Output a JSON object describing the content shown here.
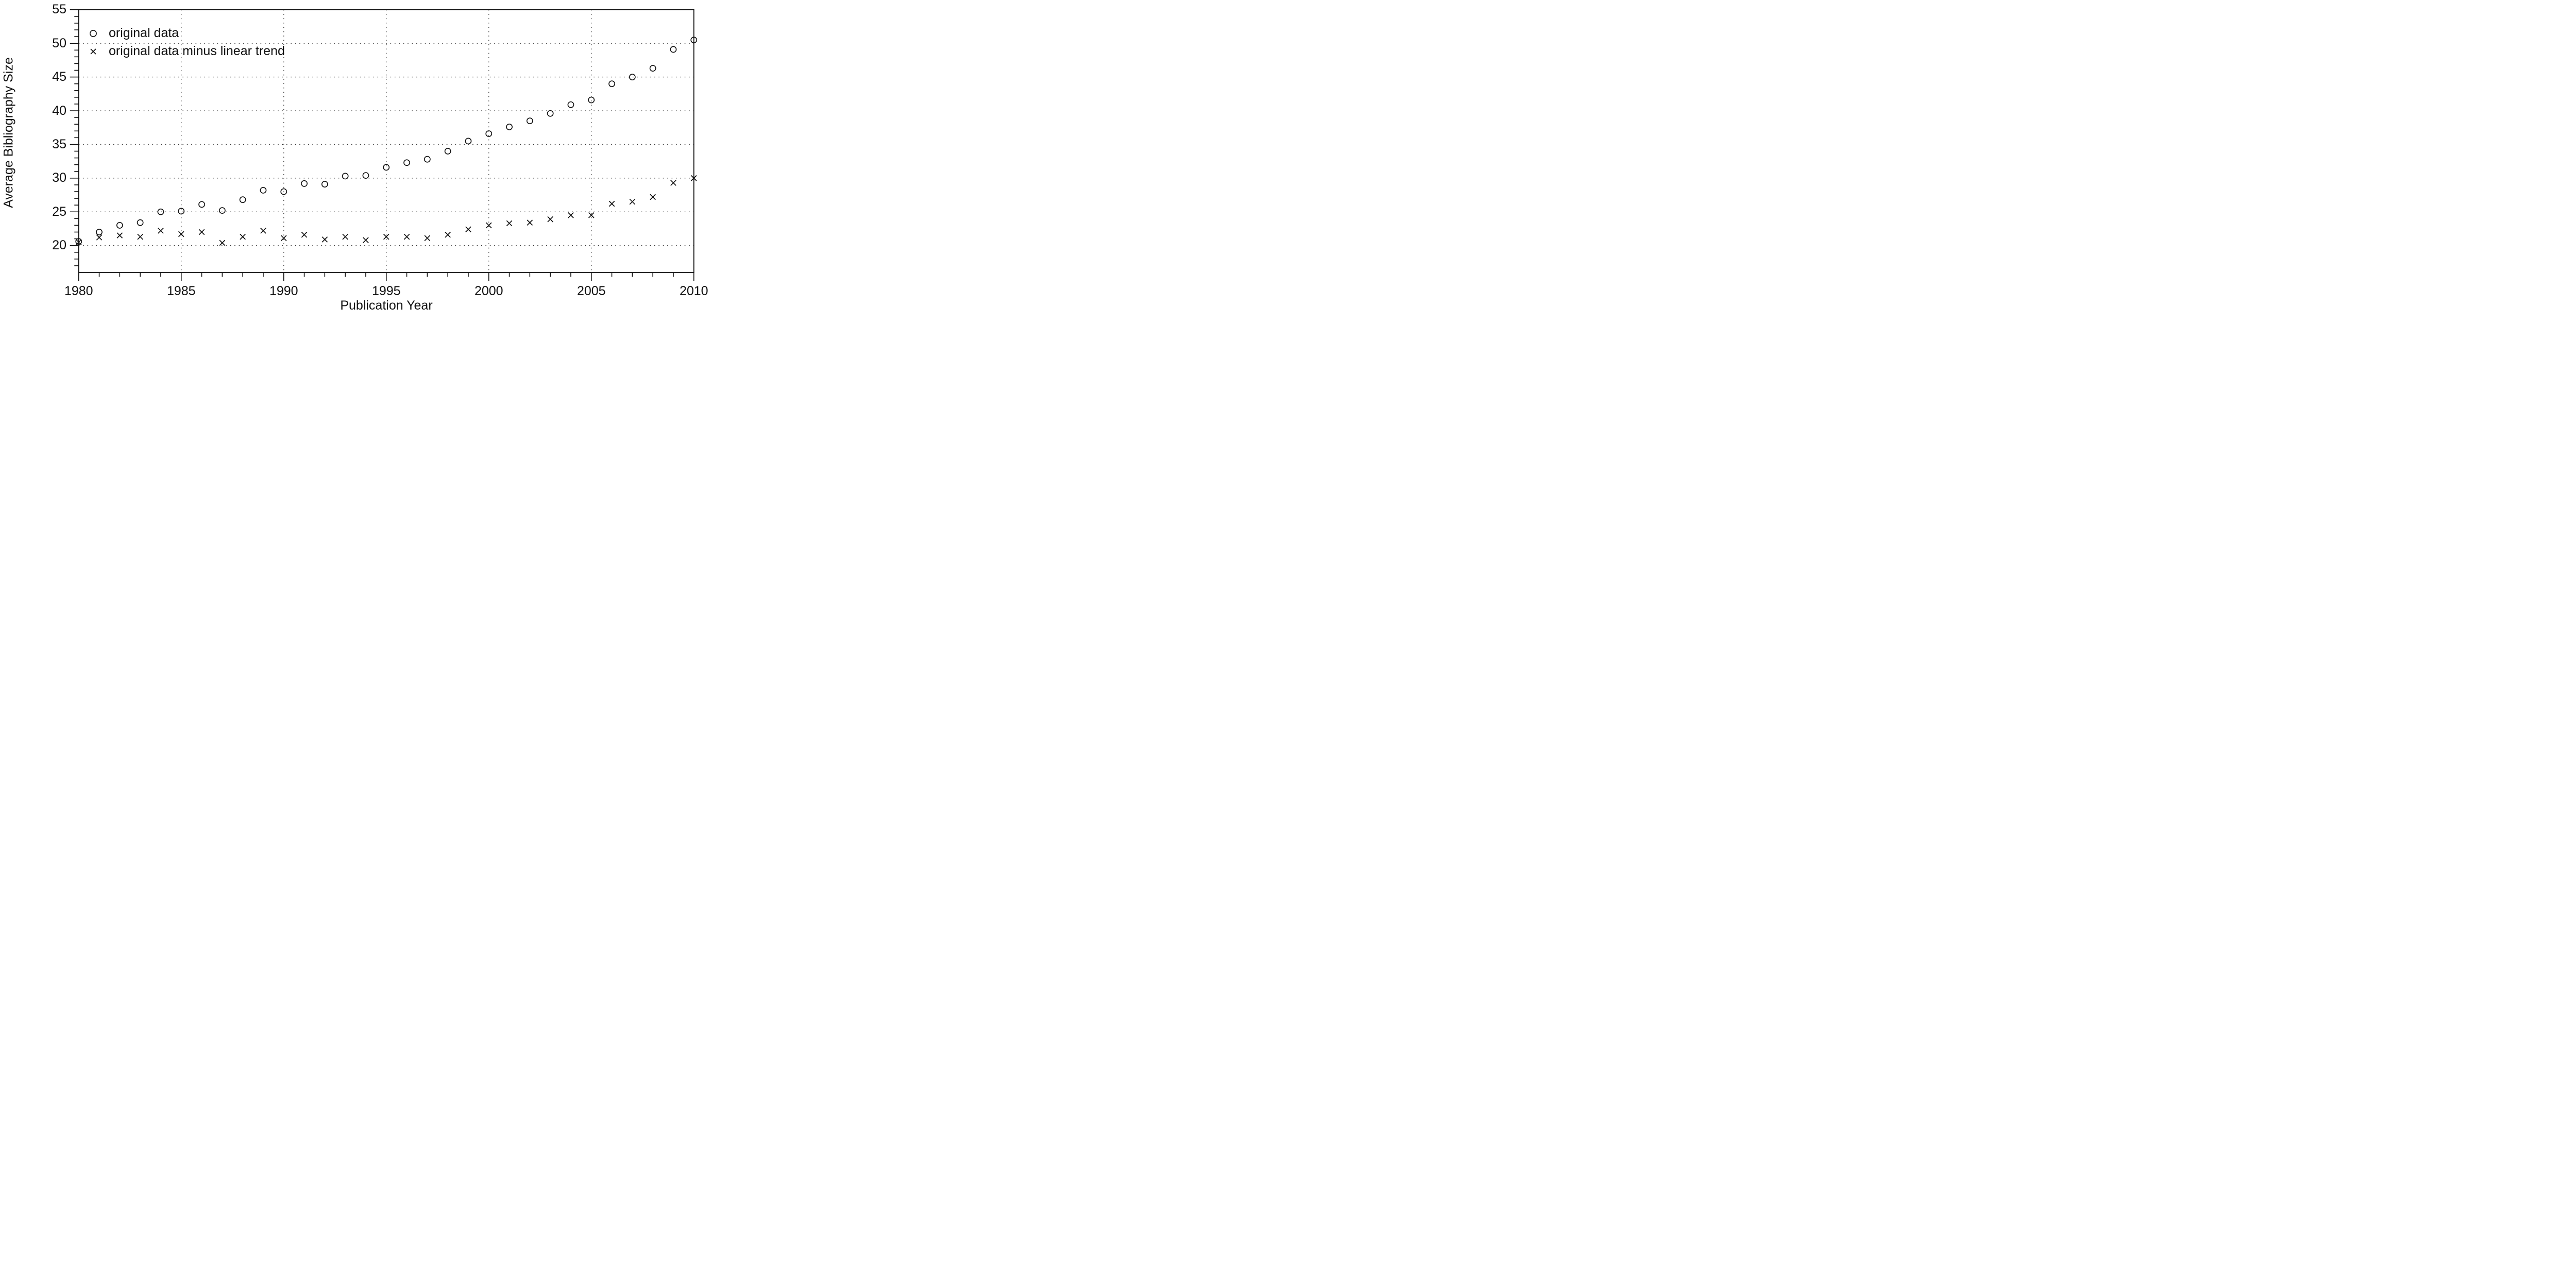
{
  "figure": {
    "background_color": "#ffffff",
    "line_color": "#111111",
    "grid_color": "#333333"
  },
  "chart_data": {
    "type": "scatter",
    "title": "",
    "xlabel": "Publication Year",
    "ylabel": "Average Bibliography Size",
    "xlim": [
      1980,
      2010
    ],
    "ylim": [
      16,
      55
    ],
    "x_major_ticks": [
      1980,
      1985,
      1990,
      1995,
      2000,
      2005,
      2010
    ],
    "y_major_ticks": [
      20,
      25,
      30,
      35,
      40,
      45,
      50,
      55
    ],
    "x_minor_tick_step": 1,
    "y_minor_tick_step": 1,
    "grid": "dotted lines at major ticks, box frame around plot",
    "legend_position": "top-left inside plot",
    "x": [
      1980,
      1981,
      1982,
      1983,
      1984,
      1985,
      1986,
      1987,
      1988,
      1989,
      1990,
      1991,
      1992,
      1993,
      1994,
      1995,
      1996,
      1997,
      1998,
      1999,
      2000,
      2001,
      2002,
      2003,
      2004,
      2005,
      2006,
      2007,
      2008,
      2009,
      2010
    ],
    "series": [
      {
        "name": "original data",
        "marker": "circle",
        "values": [
          20.6,
          22.0,
          23.0,
          23.4,
          25.0,
          25.1,
          26.1,
          25.2,
          26.8,
          28.2,
          28.0,
          29.2,
          29.1,
          30.3,
          30.4,
          31.6,
          32.3,
          32.8,
          34.0,
          35.5,
          36.6,
          37.6,
          38.5,
          39.6,
          40.9,
          41.6,
          44.0,
          45.0,
          46.3,
          49.1,
          50.5
        ]
      },
      {
        "name": "original data minus linear trend",
        "marker": "x",
        "values": [
          20.5,
          21.2,
          21.5,
          21.3,
          22.2,
          21.7,
          22.0,
          20.4,
          21.3,
          22.2,
          21.1,
          21.6,
          20.9,
          21.3,
          20.8,
          21.3,
          21.3,
          21.1,
          21.6,
          22.4,
          23.0,
          23.3,
          23.4,
          23.9,
          24.5,
          24.5,
          26.2,
          26.5,
          27.2,
          29.3,
          30.0
        ]
      }
    ]
  }
}
